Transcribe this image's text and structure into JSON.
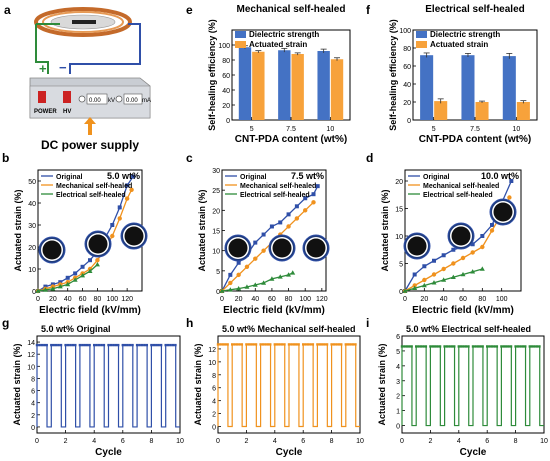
{
  "figure": {
    "panel_letters": [
      "a",
      "b",
      "c",
      "d",
      "e",
      "f",
      "g",
      "h",
      "i"
    ]
  },
  "colors": {
    "blue": "#2F4FA8",
    "orange": "#F0921E",
    "green": "#2E8B3A",
    "bar_blue": "#4472C4",
    "bar_orange": "#F7A23B"
  },
  "device": {
    "supply_label": "DC power supply",
    "power_label": "POWER",
    "hv_label": "HV",
    "kv_value": "0.00",
    "kv_unit": "kV",
    "ma_value": "0.00",
    "ma_unit": "mA",
    "plus_sign": "+",
    "minus_sign": "−"
  },
  "chart_data": [
    {
      "panel": "e",
      "type": "bar",
      "title": "Mechanical self-healed",
      "xlabel": "CNT-PDA content (wt%)",
      "ylabel": "Self-healing efficiency (%)",
      "categories": [
        "5",
        "7.5",
        "10"
      ],
      "ylim": [
        0,
        120
      ],
      "yticks": [
        0,
        20,
        40,
        60,
        80,
        100
      ],
      "legend_position": "top-left",
      "series": [
        {
          "name": "Dielectric strength",
          "values": [
            97,
            93,
            92
          ],
          "errors": [
            2,
            2.5,
            2.5
          ]
        },
        {
          "name": "Actuated strain",
          "values": [
            91,
            88,
            81
          ],
          "errors": [
            1.5,
            1.5,
            2
          ]
        }
      ]
    },
    {
      "panel": "f",
      "type": "bar",
      "title": "Electrical self-healed",
      "xlabel": "CNT-PDA content (wt%)",
      "ylabel": "Self-healing efficiency (%)",
      "categories": [
        "5",
        "7.5",
        "10"
      ],
      "ylim": [
        0,
        100
      ],
      "yticks": [
        0,
        20,
        40,
        60,
        80,
        100
      ],
      "legend_position": "top-left",
      "series": [
        {
          "name": "Dielectric strength",
          "values": [
            72,
            72,
            71
          ],
          "errors": [
            2.5,
            2,
            3
          ]
        },
        {
          "name": "Actuated strain",
          "values": [
            21,
            20,
            20
          ],
          "errors": [
            2.5,
            1,
            1.5
          ]
        }
      ]
    },
    {
      "panel": "b",
      "type": "line",
      "annotation": "5.0 wt%",
      "xlabel": "Electric field (kV/mm)",
      "ylabel": "Actuated strain (%)",
      "xlim": [
        0,
        140
      ],
      "ylim": [
        0,
        55
      ],
      "xticks": [
        0,
        20,
        40,
        60,
        80,
        100,
        120
      ],
      "yticks": [
        0,
        10,
        20,
        30,
        40,
        50
      ],
      "legend_position": "top-left",
      "series": [
        {
          "name": "Original",
          "marker": "square",
          "x": [
            0,
            10,
            20,
            30,
            40,
            50,
            60,
            70,
            80,
            90,
            100,
            110,
            120,
            128
          ],
          "y": [
            0,
            2,
            3,
            4,
            6,
            8,
            11,
            14,
            18,
            24,
            30,
            38,
            48,
            52
          ]
        },
        {
          "name": "Mechanical self-healed",
          "marker": "circle",
          "x": [
            0,
            10,
            20,
            30,
            40,
            50,
            60,
            70,
            80,
            90,
            100,
            110,
            120,
            126
          ],
          "y": [
            0,
            1,
            2,
            3,
            4,
            6,
            8,
            10,
            14,
            19,
            25,
            33,
            42,
            46
          ]
        },
        {
          "name": "Electrical self-healed",
          "marker": "triangle",
          "x": [
            0,
            10,
            20,
            30,
            40,
            50,
            60,
            70,
            80
          ],
          "y": [
            0,
            0.5,
            1,
            2,
            3,
            5,
            7,
            9,
            12
          ]
        }
      ]
    },
    {
      "panel": "c",
      "type": "line",
      "annotation": "7.5 wt%",
      "xlabel": "Electric field (kV/mm)",
      "ylabel": "Actuated strain (%)",
      "xlim": [
        0,
        125
      ],
      "ylim": [
        0,
        30
      ],
      "xticks": [
        0,
        20,
        40,
        60,
        80,
        100,
        120
      ],
      "yticks": [
        0,
        5,
        10,
        15,
        20,
        25,
        30
      ],
      "legend_position": "top-left",
      "series": [
        {
          "name": "Original",
          "marker": "square",
          "x": [
            0,
            10,
            20,
            30,
            40,
            50,
            60,
            70,
            80,
            90,
            100,
            110,
            115
          ],
          "y": [
            0,
            4,
            7,
            9,
            12,
            14,
            16,
            17,
            19,
            21,
            23,
            24,
            26
          ]
        },
        {
          "name": "Mechanical self-healed",
          "marker": "circle",
          "x": [
            0,
            10,
            20,
            30,
            40,
            50,
            60,
            70,
            80,
            90,
            100,
            110
          ],
          "y": [
            0,
            2,
            4,
            6,
            8,
            10,
            12,
            14,
            16,
            18,
            20,
            22
          ]
        },
        {
          "name": "Electrical self-healed",
          "marker": "triangle",
          "x": [
            0,
            10,
            20,
            30,
            40,
            50,
            60,
            70,
            80,
            85
          ],
          "y": [
            0,
            0.3,
            0.6,
            1,
            1.5,
            2,
            3,
            3.5,
            4,
            4.5
          ]
        }
      ]
    },
    {
      "panel": "d",
      "type": "line",
      "annotation": "10.0 wt%",
      "xlabel": "Electric field (kV/mm)",
      "ylabel": "Actuated strain (%)",
      "xlim": [
        0,
        120
      ],
      "ylim": [
        0,
        22
      ],
      "xticks": [
        0,
        20,
        40,
        60,
        80,
        100
      ],
      "yticks": [
        0,
        5,
        10,
        15,
        20
      ],
      "legend_position": "top-left",
      "series": [
        {
          "name": "Original",
          "marker": "square",
          "x": [
            0,
            10,
            20,
            30,
            40,
            50,
            60,
            70,
            80,
            90,
            100,
            110
          ],
          "y": [
            0,
            3,
            4.5,
            5.5,
            6.5,
            7.5,
            8,
            8.5,
            10,
            12,
            16,
            20
          ]
        },
        {
          "name": "Mechanical self-healed",
          "marker": "circle",
          "x": [
            0,
            10,
            20,
            30,
            40,
            50,
            60,
            70,
            80,
            90,
            100,
            108
          ],
          "y": [
            0,
            1,
            2,
            3,
            4,
            5,
            6,
            7,
            8,
            11,
            14,
            17
          ]
        },
        {
          "name": "Electrical self-healed",
          "marker": "triangle",
          "x": [
            0,
            10,
            20,
            30,
            40,
            50,
            60,
            70,
            80
          ],
          "y": [
            0,
            0.5,
            1,
            1.5,
            2,
            2.5,
            3,
            3.5,
            4
          ]
        }
      ]
    },
    {
      "panel": "g",
      "type": "line",
      "annotation": "5.0 wt% Original",
      "xlabel": "Cycle",
      "ylabel": "Actuated strain (%)",
      "xlim": [
        0,
        10
      ],
      "ylim": [
        -1,
        15
      ],
      "xticks": [
        0,
        2,
        4,
        6,
        8,
        10
      ],
      "yticks": [
        0,
        2,
        4,
        6,
        8,
        10,
        12,
        14
      ],
      "cycles": 10,
      "on_value": 13.5,
      "off_value": 0
    },
    {
      "panel": "h",
      "type": "line",
      "annotation": "5.0 wt% Mechanical self-healed",
      "xlabel": "Cycle",
      "ylabel": "Actuated strain (%)",
      "xlim": [
        0,
        10
      ],
      "ylim": [
        -1,
        14
      ],
      "xticks": [
        0,
        2,
        4,
        6,
        8,
        10
      ],
      "yticks": [
        0,
        2,
        4,
        6,
        8,
        10,
        12
      ],
      "cycles": 10,
      "on_value": 12.7,
      "off_value": 0
    },
    {
      "panel": "i",
      "type": "line",
      "annotation": "5.0 wt% Electrical self-healed",
      "xlabel": "Cycle",
      "ylabel": "Actuated strain (%)",
      "xlim": [
        0,
        10
      ],
      "ylim": [
        -0.5,
        6
      ],
      "xticks": [
        0,
        2,
        4,
        6,
        8,
        10
      ],
      "yticks": [
        0,
        1,
        2,
        3,
        4,
        5,
        6
      ],
      "cycles": 10,
      "on_value": 5.3,
      "off_value": 0
    }
  ]
}
